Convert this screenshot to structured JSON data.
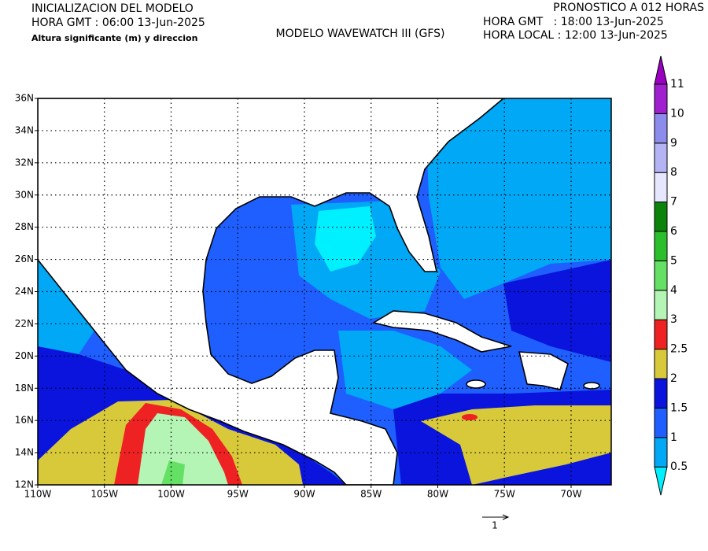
{
  "header": {
    "init_title": "INICIALIZACION DEL MODELO",
    "init_time": "HORA GMT : 06:00 13-Jun-2025",
    "variable": "Altura significante (m) y direccion",
    "model": "MODELO WAVEWATCH III (GFS)",
    "forecast": "PRONOSTICO A 012 HORAS",
    "valid_gmt": "HORA GMT   : 18:00 13-Jun-2025",
    "valid_local": "HORA LOCAL : 12:00 13-Jun-2025"
  },
  "map": {
    "lon_labels": [
      "110W",
      "105W",
      "100W",
      "95W",
      "90W",
      "85W",
      "80W",
      "75W",
      "70W"
    ],
    "lat_labels": [
      "12N",
      "14N",
      "16N",
      "18N",
      "20N",
      "22N",
      "24N",
      "26N",
      "28N",
      "30N",
      "32N",
      "34N",
      "36N"
    ],
    "reference_vector_label": "1"
  },
  "colorbar": {
    "levels": [
      0.5,
      1,
      1.5,
      2,
      2.5,
      3,
      4,
      5,
      6,
      7,
      8,
      9,
      10,
      11
    ],
    "colors": [
      "#00f0ff",
      "#00a8f5",
      "#1f5fff",
      "#0a14dc",
      "#d8c93a",
      "#ee2222",
      "#b4f4b4",
      "#64e064",
      "#2cbf2c",
      "#0c840c",
      "#e6e6ff",
      "#b4b4f4",
      "#8c8cec",
      "#a020d0",
      "#9a00c0"
    ]
  }
}
